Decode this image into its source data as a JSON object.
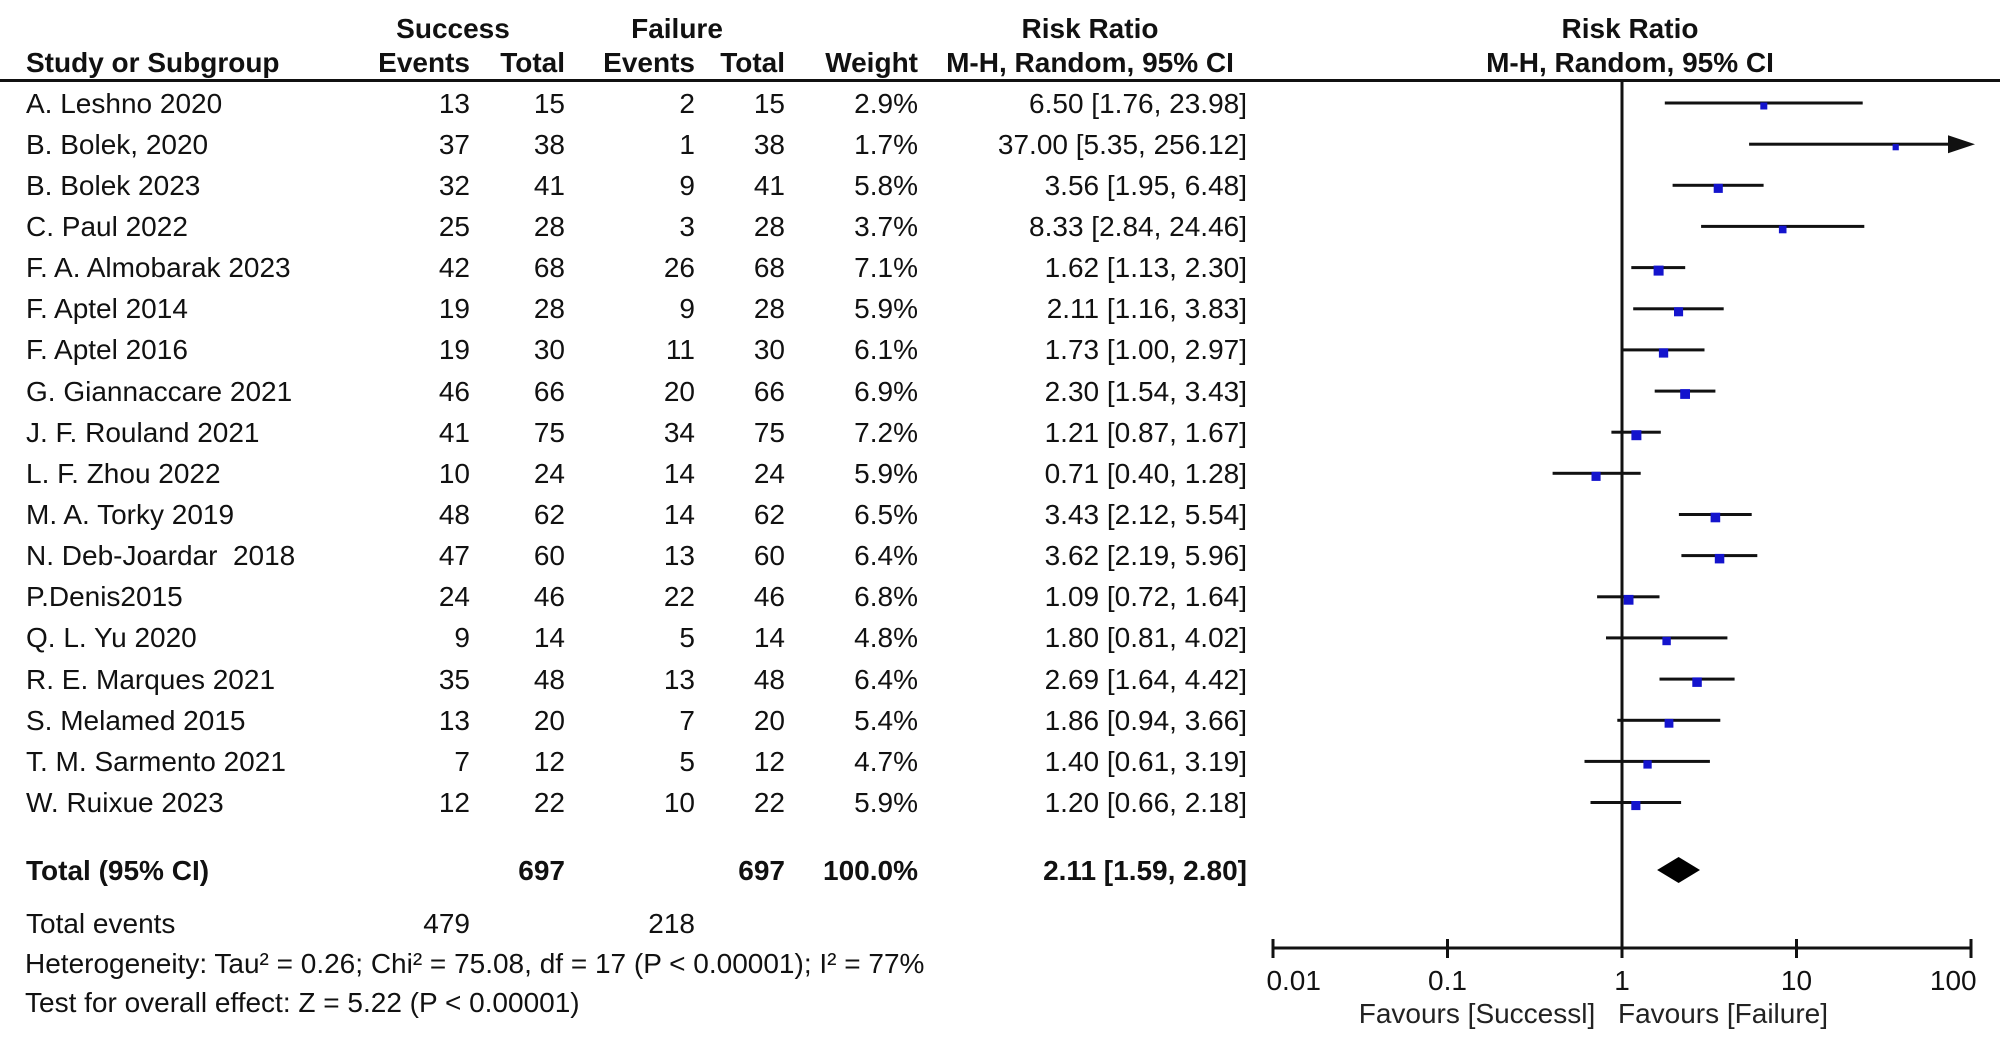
{
  "header": {
    "group_success": "Success",
    "group_failure": "Failure",
    "col_study": "Study or Subgroup",
    "col_events": "Events",
    "col_total": "Total",
    "col_weight": "Weight",
    "risk_ratio": "Risk Ratio",
    "mh_ci": "M-H, Random, 95% CI"
  },
  "colors": {
    "marker_blue": "#1414cd",
    "ci_line": "#111111",
    "diamond": "#000000",
    "text": "#111111"
  },
  "chart_data": {
    "type": "scatter",
    "subtype": "forest_plot_meta_analysis",
    "effect_measure": "Risk Ratio",
    "method": "M-H, Random, 95% CI",
    "xscale": "log10",
    "xlim": [
      0.01,
      100
    ],
    "xticks": [
      0.01,
      0.1,
      1,
      10,
      100
    ],
    "xtick_labels": [
      "0.01",
      "0.1",
      "1",
      "10",
      "100"
    ],
    "favours_left": "Favours [Successl]",
    "favours_right": "Favours [Failure]",
    "studies": [
      {
        "name": "A. Leshno 2020",
        "success_events": 13,
        "success_total": 15,
        "failure_events": 2,
        "failure_total": 15,
        "weight": 2.9,
        "weight_text": "2.9%",
        "rr_text": "6.50 [1.76, 23.98]",
        "rr": 6.5,
        "ci_low": 1.76,
        "ci_high": 23.98
      },
      {
        "name": "B. Bolek, 2020",
        "success_events": 37,
        "success_total": 38,
        "failure_events": 1,
        "failure_total": 38,
        "weight": 1.7,
        "weight_text": "1.7%",
        "rr_text": "37.00 [5.35, 256.12]",
        "rr": 37.0,
        "ci_low": 5.35,
        "ci_high": 256.12
      },
      {
        "name": "B. Bolek 2023",
        "success_events": 32,
        "success_total": 41,
        "failure_events": 9,
        "failure_total": 41,
        "weight": 5.8,
        "weight_text": "5.8%",
        "rr_text": "3.56 [1.95, 6.48]",
        "rr": 3.56,
        "ci_low": 1.95,
        "ci_high": 6.48
      },
      {
        "name": "C. Paul 2022",
        "success_events": 25,
        "success_total": 28,
        "failure_events": 3,
        "failure_total": 28,
        "weight": 3.7,
        "weight_text": "3.7%",
        "rr_text": "8.33 [2.84, 24.46]",
        "rr": 8.33,
        "ci_low": 2.84,
        "ci_high": 24.46
      },
      {
        "name": "F. A. Almobarak 2023",
        "success_events": 42,
        "success_total": 68,
        "failure_events": 26,
        "failure_total": 68,
        "weight": 7.1,
        "weight_text": "7.1%",
        "rr_text": "1.62 [1.13, 2.30]",
        "rr": 1.62,
        "ci_low": 1.13,
        "ci_high": 2.3
      },
      {
        "name": "F. Aptel 2014",
        "success_events": 19,
        "success_total": 28,
        "failure_events": 9,
        "failure_total": 28,
        "weight": 5.9,
        "weight_text": "5.9%",
        "rr_text": "2.11 [1.16, 3.83]",
        "rr": 2.11,
        "ci_low": 1.16,
        "ci_high": 3.83
      },
      {
        "name": "F. Aptel 2016",
        "success_events": 19,
        "success_total": 30,
        "failure_events": 11,
        "failure_total": 30,
        "weight": 6.1,
        "weight_text": "6.1%",
        "rr_text": "1.73 [1.00, 2.97]",
        "rr": 1.73,
        "ci_low": 1.0,
        "ci_high": 2.97
      },
      {
        "name": "G. Giannaccare 2021",
        "success_events": 46,
        "success_total": 66,
        "failure_events": 20,
        "failure_total": 66,
        "weight": 6.9,
        "weight_text": "6.9%",
        "rr_text": "2.30 [1.54, 3.43]",
        "rr": 2.3,
        "ci_low": 1.54,
        "ci_high": 3.43
      },
      {
        "name": "J. F. Rouland 2021",
        "success_events": 41,
        "success_total": 75,
        "failure_events": 34,
        "failure_total": 75,
        "weight": 7.2,
        "weight_text": "7.2%",
        "rr_text": "1.21 [0.87, 1.67]",
        "rr": 1.21,
        "ci_low": 0.87,
        "ci_high": 1.67
      },
      {
        "name": "L. F. Zhou 2022",
        "success_events": 10,
        "success_total": 24,
        "failure_events": 14,
        "failure_total": 24,
        "weight": 5.9,
        "weight_text": "5.9%",
        "rr_text": "0.71 [0.40, 1.28]",
        "rr": 0.71,
        "ci_low": 0.4,
        "ci_high": 1.28
      },
      {
        "name": "M. A. Torky 2019",
        "success_events": 48,
        "success_total": 62,
        "failure_events": 14,
        "failure_total": 62,
        "weight": 6.5,
        "weight_text": "6.5%",
        "rr_text": "3.43 [2.12, 5.54]",
        "rr": 3.43,
        "ci_low": 2.12,
        "ci_high": 5.54
      },
      {
        "name": "N. Deb-Joardar  2018",
        "success_events": 47,
        "success_total": 60,
        "failure_events": 13,
        "failure_total": 60,
        "weight": 6.4,
        "weight_text": "6.4%",
        "rr_text": "3.62 [2.19, 5.96]",
        "rr": 3.62,
        "ci_low": 2.19,
        "ci_high": 5.96
      },
      {
        "name": "P.Denis2015",
        "success_events": 24,
        "success_total": 46,
        "failure_events": 22,
        "failure_total": 46,
        "weight": 6.8,
        "weight_text": "6.8%",
        "rr_text": "1.09 [0.72, 1.64]",
        "rr": 1.09,
        "ci_low": 0.72,
        "ci_high": 1.64
      },
      {
        "name": "Q. L. Yu 2020",
        "success_events": 9,
        "success_total": 14,
        "failure_events": 5,
        "failure_total": 14,
        "weight": 4.8,
        "weight_text": "4.8%",
        "rr_text": "1.80 [0.81, 4.02]",
        "rr": 1.8,
        "ci_low": 0.81,
        "ci_high": 4.02
      },
      {
        "name": "R. E. Marques 2021",
        "success_events": 35,
        "success_total": 48,
        "failure_events": 13,
        "failure_total": 48,
        "weight": 6.4,
        "weight_text": "6.4%",
        "rr_text": "2.69 [1.64, 4.42]",
        "rr": 2.69,
        "ci_low": 1.64,
        "ci_high": 4.42
      },
      {
        "name": "S. Melamed 2015",
        "success_events": 13,
        "success_total": 20,
        "failure_events": 7,
        "failure_total": 20,
        "weight": 5.4,
        "weight_text": "5.4%",
        "rr_text": "1.86 [0.94, 3.66]",
        "rr": 1.86,
        "ci_low": 0.94,
        "ci_high": 3.66
      },
      {
        "name": "T. M. Sarmento 2021",
        "success_events": 7,
        "success_total": 12,
        "failure_events": 5,
        "failure_total": 12,
        "weight": 4.7,
        "weight_text": "4.7%",
        "rr_text": "1.40 [0.61, 3.19]",
        "rr": 1.4,
        "ci_low": 0.61,
        "ci_high": 3.19
      },
      {
        "name": "W. Ruixue 2023",
        "success_events": 12,
        "success_total": 22,
        "failure_events": 10,
        "failure_total": 22,
        "weight": 5.9,
        "weight_text": "5.9%",
        "rr_text": "1.20 [0.66, 2.18]",
        "rr": 1.2,
        "ci_low": 0.66,
        "ci_high": 2.18
      }
    ],
    "total": {
      "label": "Total (95% CI)",
      "success_total": 697,
      "failure_total": 697,
      "weight_text": "100.0%",
      "rr_text": "2.11 [1.59, 2.80]",
      "rr": 2.11,
      "ci_low": 1.59,
      "ci_high": 2.8
    },
    "total_events": {
      "label": "Total events",
      "success": 479,
      "failure": 218
    },
    "heterogeneity": "Heterogeneity: Tau² = 0.26; Chi² = 75.08, df = 17 (P < 0.00001); I² = 77%",
    "overall_effect": "Test for overall effect: Z = 5.22 (P < 0.00001)"
  }
}
